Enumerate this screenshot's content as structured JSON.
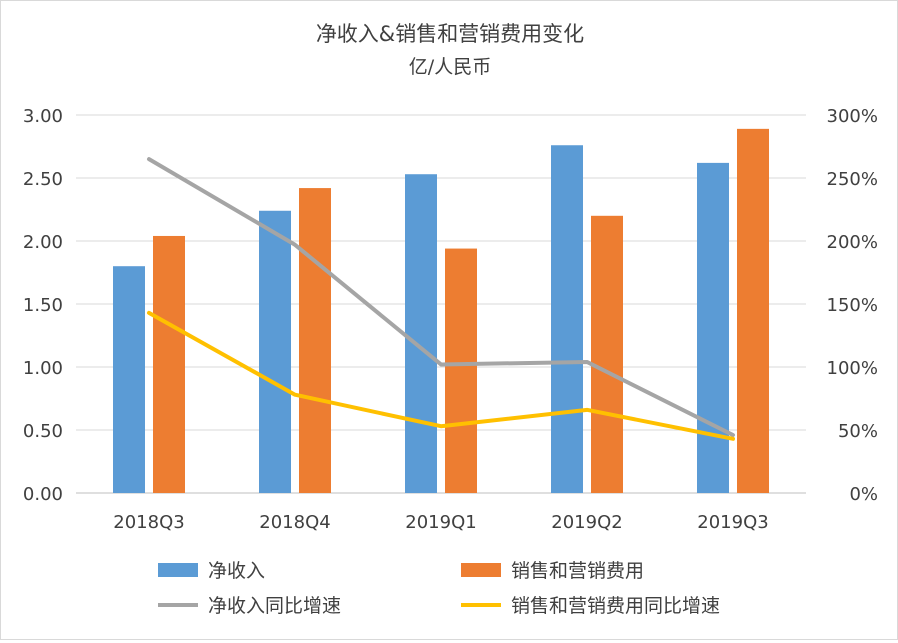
{
  "chart_data": {
    "type": "bar+line",
    "title": "净收入&销售和营销费用变化",
    "subtitle": "亿/人民币",
    "categories": [
      "2018Q3",
      "2018Q4",
      "2019Q1",
      "2019Q2",
      "2019Q3"
    ],
    "left_axis": {
      "ylim": [
        0,
        3
      ],
      "ticks": [
        "0.00",
        "0.50",
        "1.00",
        "1.50",
        "2.00",
        "2.50",
        "3.00"
      ],
      "tick_values": [
        0,
        0.5,
        1.0,
        1.5,
        2.0,
        2.5,
        3.0
      ]
    },
    "right_axis": {
      "ylim": [
        0,
        300
      ],
      "ticks": [
        "0%",
        "50%",
        "100%",
        "150%",
        "200%",
        "250%",
        "300%"
      ],
      "tick_values": [
        0,
        50,
        100,
        150,
        200,
        250,
        300
      ]
    },
    "grid": true,
    "bar_series": [
      {
        "name": "净收入",
        "color": "#5b9bd5",
        "values": [
          1.8,
          2.24,
          2.53,
          2.76,
          2.62
        ]
      },
      {
        "name": "销售和营销费用",
        "color": "#ed7d31",
        "values": [
          2.04,
          2.42,
          1.94,
          2.2,
          2.89
        ]
      }
    ],
    "line_series": [
      {
        "name": "净收入同比增速",
        "color": "#a5a5a5",
        "values": [
          265,
          197,
          102,
          104,
          46
        ]
      },
      {
        "name": "销售和营销费用同比增速",
        "color": "#ffc000",
        "values": [
          143,
          78,
          53,
          66,
          43
        ]
      }
    ],
    "legend_position": "bottom"
  }
}
